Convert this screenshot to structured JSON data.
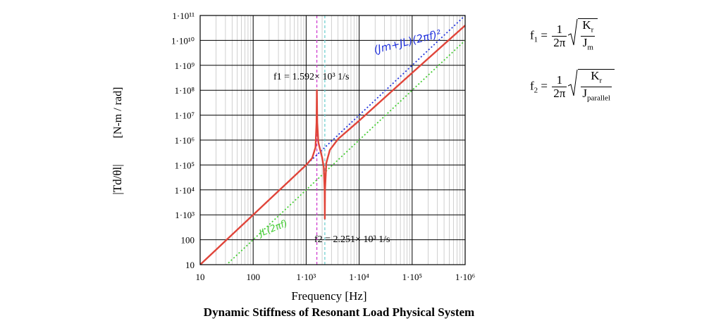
{
  "chart_data": {
    "type": "line",
    "title": "Dynamic Stiffness of Resonant Load Physical System",
    "xlabel": "Frequency [Hz]",
    "ylabel_left": "|Td/θl|",
    "ylabel_unit": "[N-m / rad]",
    "x_scale": "log",
    "y_scale": "log",
    "xlim": [
      10,
      1000000
    ],
    "ylim": [
      10,
      100000000000
    ],
    "grid": true,
    "x_ticks": [
      "10",
      "100",
      "1·10³",
      "1·10⁴",
      "1·10⁵",
      "1·10⁶"
    ],
    "y_ticks": [
      "10",
      "100",
      "1·10³",
      "1·10⁴",
      "1·10⁵",
      "1·10⁶",
      "1·10⁷",
      "1·10⁸",
      "1·10⁹",
      "1·10¹⁰",
      "1·10¹¹"
    ],
    "resonances": {
      "f1": 1592,
      "f2": 2251
    },
    "series": [
      {
        "role": "measured",
        "color": "#e0453a",
        "x": [
          10,
          20,
          50,
          100,
          200,
          500,
          1000,
          1300,
          1500,
          1570,
          1592,
          1620,
          1700,
          2000,
          2150,
          2230,
          2251,
          2270,
          2400,
          2800,
          4000,
          10000,
          100000,
          1000000
        ],
        "y": [
          10,
          40,
          250,
          1000,
          4000,
          25000,
          100000,
          190000,
          500000,
          5000000,
          100000000,
          5000000,
          800000,
          200000,
          80000,
          10000,
          700,
          10000,
          120000,
          400000,
          1100000,
          6000000,
          500000000,
          40000000000
        ]
      },
      {
        "role": "high-frequency asymptote",
        "color": "#2233dd",
        "x": [
          10,
          1000000
        ],
        "y": [
          10,
          100000000000
        ]
      },
      {
        "role": "low-frequency asymptote",
        "color": "#44cc33",
        "x": [
          10,
          1000000
        ],
        "y": [
          1,
          10000000000
        ]
      }
    ],
    "markers": [
      {
        "x": 1592,
        "color": "#cc33cc",
        "label": "f1 = 1.592× 10³ 1/s"
      },
      {
        "x": 2251,
        "color": "#66cccc",
        "label": "f2 = 2.251× 10³ 1/s"
      }
    ],
    "annotations": {
      "blue_handwritten": "(Jm+JL)(2πf)²",
      "green_handwritten": "JL(2πf)"
    }
  },
  "equations": {
    "f1": {
      "lhs": "f",
      "sub": "1",
      "num": "1",
      "den": "2π",
      "rad_num": "K",
      "rad_num_sub": "r",
      "rad_den": "J",
      "rad_den_sub": "m"
    },
    "f2": {
      "lhs": "f",
      "sub": "2",
      "num": "1",
      "den": "2π",
      "rad_num": "K",
      "rad_num_sub": "r",
      "rad_den": "J",
      "rad_den_sub": "parallel"
    }
  }
}
